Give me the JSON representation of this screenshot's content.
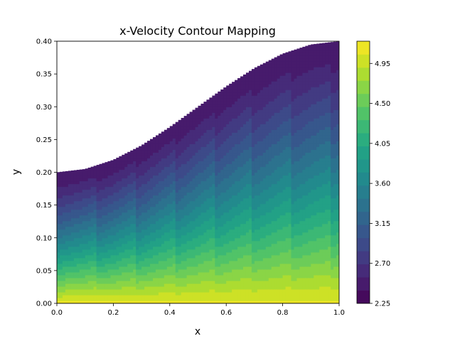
{
  "chart_data": {
    "type": "heatmap",
    "subtype": "filled-contour",
    "title": "x-Velocity Contour Mapping",
    "xlabel": "x",
    "ylabel": "y",
    "xlim": [
      0.0,
      1.0
    ],
    "ylim": [
      0.0,
      0.4
    ],
    "x_ticks": [
      "0.0",
      "0.2",
      "0.4",
      "0.6",
      "0.8",
      "1.0"
    ],
    "y_ticks": [
      "0.00",
      "0.05",
      "0.10",
      "0.15",
      "0.20",
      "0.25",
      "0.30",
      "0.35",
      "0.40"
    ],
    "colorbar": {
      "colormap": "viridis",
      "range": [
        2.25,
        5.2
      ],
      "ticks": [
        "2.25",
        "2.70",
        "3.15",
        "3.60",
        "4.05",
        "4.50",
        "4.95"
      ],
      "levels": 20
    },
    "upper_boundary": {
      "shape": "sinusoidal wall y = 0.3 - 0.1*cos(pi*x)",
      "x": [
        0.0,
        0.1,
        0.2,
        0.3,
        0.4,
        0.5,
        0.6,
        0.7,
        0.8,
        0.9,
        1.0
      ],
      "y": [
        0.2,
        0.205,
        0.219,
        0.241,
        0.269,
        0.3,
        0.331,
        0.359,
        0.381,
        0.395,
        0.4
      ]
    },
    "field_description": {
      "near_bottom_value": 5.1,
      "near_top_wall_value": 2.4
    },
    "grid": false
  }
}
